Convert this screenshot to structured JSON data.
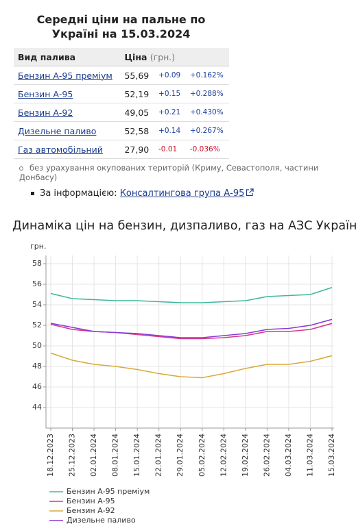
{
  "table": {
    "title": "Середні ціни на пальне по Україні на 15.03.2024",
    "headers": [
      "Вид палива",
      "Ціна",
      "(грн.)"
    ],
    "rows": [
      [
        "Бензин А-95 преміум",
        "55,69",
        "+0.09",
        "+0.162%"
      ],
      [
        "Бензин А-95",
        "52,19",
        "+0.15",
        "+0.288%"
      ],
      [
        "Бензин А-92",
        "49,05",
        "+0.21",
        "+0.430%"
      ],
      [
        "Дизельне паливо",
        "52,58",
        "+0.14",
        "+0.267%"
      ],
      [
        "Газ автомобільний",
        "27,90",
        "-0.01",
        "-0.036%"
      ]
    ]
  },
  "note": "без урахування окупованих територій (Криму, Севастополя, частини Донбасу)",
  "source": {
    "label": "За інформацією:",
    "link": "Консалтингова група А-95"
  },
  "chart_data": {
    "type": "line",
    "title": "Динаміка цін на бензин, дизпаливо, газ на АЗС України",
    "y_label": "грн.",
    "categories": [
      "18.12.2023",
      "25.12.2023",
      "02.01.2024",
      "08.01.2024",
      "15.01.2024",
      "22.01.2024",
      "29.01.2024",
      "05.02.2024",
      "12.02.2024",
      "19.02.2024",
      "26.02.2024",
      "04.03.2024",
      "11.03.2024",
      "15.03.2024"
    ],
    "series": [
      {
        "name": "Бензин А-95 преміум",
        "color": "#3db89b",
        "values": [
          55.1,
          54.6,
          54.5,
          54.4,
          54.4,
          54.3,
          54.2,
          54.2,
          54.3,
          54.4,
          54.8,
          54.9,
          55.0,
          55.69
        ]
      },
      {
        "name": "Бензин А-95",
        "color": "#d6378b",
        "values": [
          52.1,
          51.6,
          51.4,
          51.3,
          51.1,
          50.9,
          50.7,
          50.7,
          50.8,
          51.0,
          51.4,
          51.4,
          51.6,
          52.19
        ]
      },
      {
        "name": "Бензин А-92",
        "color": "#d8aa3a",
        "values": [
          49.3,
          48.6,
          48.2,
          48.0,
          47.7,
          47.3,
          47.0,
          46.9,
          47.3,
          47.8,
          48.2,
          48.2,
          48.5,
          49.05
        ]
      },
      {
        "name": "Дизельне паливо",
        "color": "#8b3ad6",
        "values": [
          52.2,
          51.8,
          51.4,
          51.3,
          51.2,
          51.0,
          50.8,
          50.8,
          51.0,
          51.2,
          51.6,
          51.7,
          52.0,
          52.58
        ]
      }
    ],
    "ylim": [
      42,
      58.8
    ],
    "yticks": [
      44,
      46,
      48,
      50,
      52,
      54,
      56,
      58
    ],
    "grid": true
  }
}
